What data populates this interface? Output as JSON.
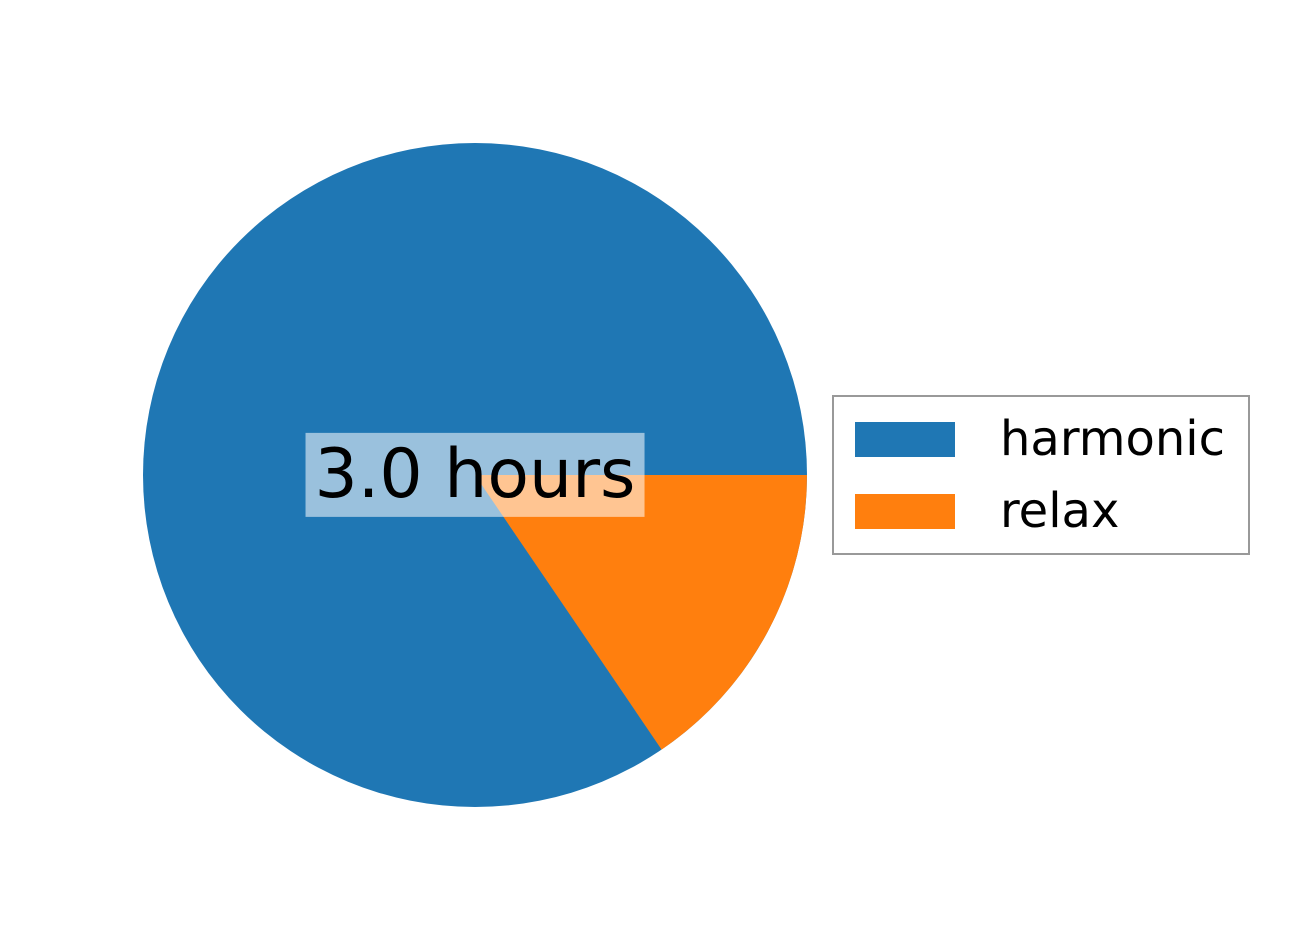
{
  "figure": {
    "background": "#ffffff"
  },
  "center_label": {
    "text": "3.0 hours",
    "text_color": "#000000",
    "box_color": "rgba(255,255,255,0.55)"
  },
  "legend": {
    "border_color": "#999999",
    "background": "#ffffff",
    "items": [
      {
        "label": "harmonic",
        "color": "#1f77b4"
      },
      {
        "label": "relax",
        "color": "#ff7f0e"
      }
    ]
  },
  "chart_data": {
    "type": "pie",
    "categories": [
      "harmonic",
      "relax"
    ],
    "values": [
      0.845,
      0.155
    ],
    "values_note": "fractions of the pie estimated from wedge angles (relax wedge ~56 deg); the only number printed on the chart is the center label",
    "center_label": "3.0 hours",
    "colors": [
      "#1f77b4",
      "#ff7f0e"
    ],
    "start_angle_deg": 0,
    "counterclockwise": true,
    "title": "",
    "legend_position": "center right",
    "legend_entries": [
      "harmonic",
      "relax"
    ]
  }
}
